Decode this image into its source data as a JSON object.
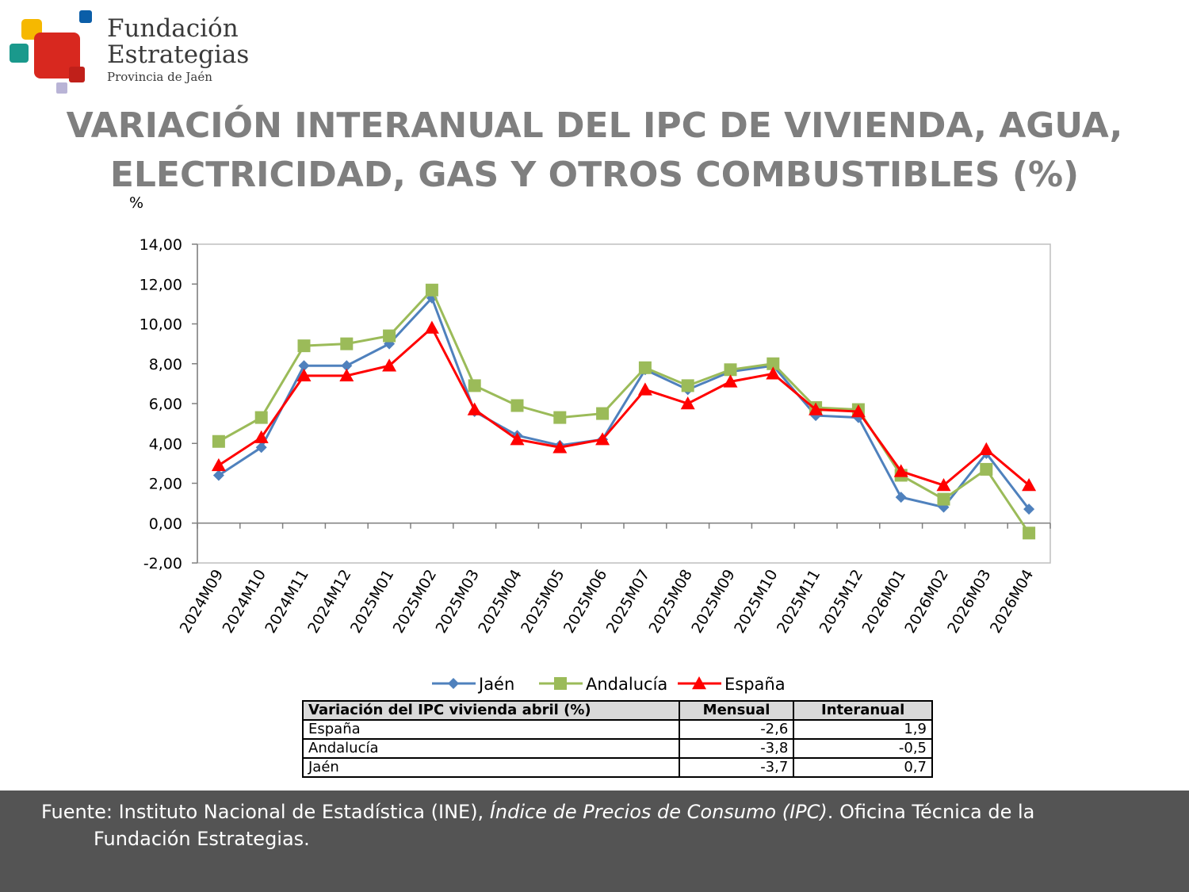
{
  "logo": {
    "line1": "Fundación",
    "line2": "Estrategias",
    "line3": "Provincia de Jaén"
  },
  "title": {
    "line1": "VARIACIÓN INTERANUAL DEL IPC DE VIVIENDA, AGUA,",
    "line2": "ELECTRICIDAD, GAS Y OTROS COMBUSTIBLES (%)"
  },
  "chart_data": {
    "type": "line",
    "ylabel": "%",
    "ylim": [
      -2,
      14
    ],
    "yticks": [
      -2,
      0,
      2,
      4,
      6,
      8,
      10,
      12,
      14
    ],
    "ytick_labels": [
      "-2,00",
      "0,00",
      "2,00",
      "4,00",
      "6,00",
      "8,00",
      "10,00",
      "12,00",
      "14,00"
    ],
    "categories": [
      "2024M09",
      "2024M10",
      "2024M11",
      "2024M12",
      "2025M01",
      "2025M02",
      "2025M03",
      "2025M04",
      "2025M05",
      "2025M06",
      "2025M07",
      "2025M08",
      "2025M09",
      "2025M10",
      "2025M11",
      "2025M12",
      "2026M01",
      "2026M02",
      "2026M03",
      "2026M04"
    ],
    "grid": false,
    "legend": "bottom",
    "series": [
      {
        "name": "Jaén",
        "color": "#4f81bd",
        "marker": "diamond",
        "values": [
          2.4,
          3.8,
          7.9,
          7.9,
          9.0,
          11.3,
          5.6,
          4.4,
          3.9,
          4.2,
          7.7,
          6.7,
          7.6,
          7.9,
          5.4,
          5.3,
          1.3,
          0.8,
          3.5,
          0.7
        ]
      },
      {
        "name": "Andalucía",
        "color": "#9bbb59",
        "marker": "square",
        "values": [
          4.1,
          5.3,
          8.9,
          9.0,
          9.4,
          11.7,
          6.9,
          5.9,
          5.3,
          5.5,
          7.8,
          6.9,
          7.7,
          8.0,
          5.8,
          5.7,
          2.4,
          1.2,
          2.7,
          -0.5
        ]
      },
      {
        "name": "España",
        "color": "#ff0000",
        "marker": "triangle",
        "values": [
          2.9,
          4.3,
          7.4,
          7.4,
          7.9,
          9.8,
          5.7,
          4.2,
          3.8,
          4.2,
          6.7,
          6.0,
          7.1,
          7.5,
          5.7,
          5.6,
          2.6,
          1.9,
          3.7,
          1.9
        ]
      }
    ]
  },
  "table": {
    "headers": [
      "Variación del IPC vivienda abril (%)",
      "Mensual",
      "Interanual"
    ],
    "rows": [
      [
        "España",
        "-2,6",
        "1,9"
      ],
      [
        "Andalucía",
        "-3,8",
        "-0,5"
      ],
      [
        "Jaén",
        "-3,7",
        "0,7"
      ]
    ]
  },
  "footer": {
    "part1": "Fuente: Instituto Nacional de Estadística (INE), ",
    "italic": "Índice de Precios de Consumo (IPC)",
    "part2": ". Oficina Técnica de la",
    "part3": "Fundación Estrategias."
  }
}
